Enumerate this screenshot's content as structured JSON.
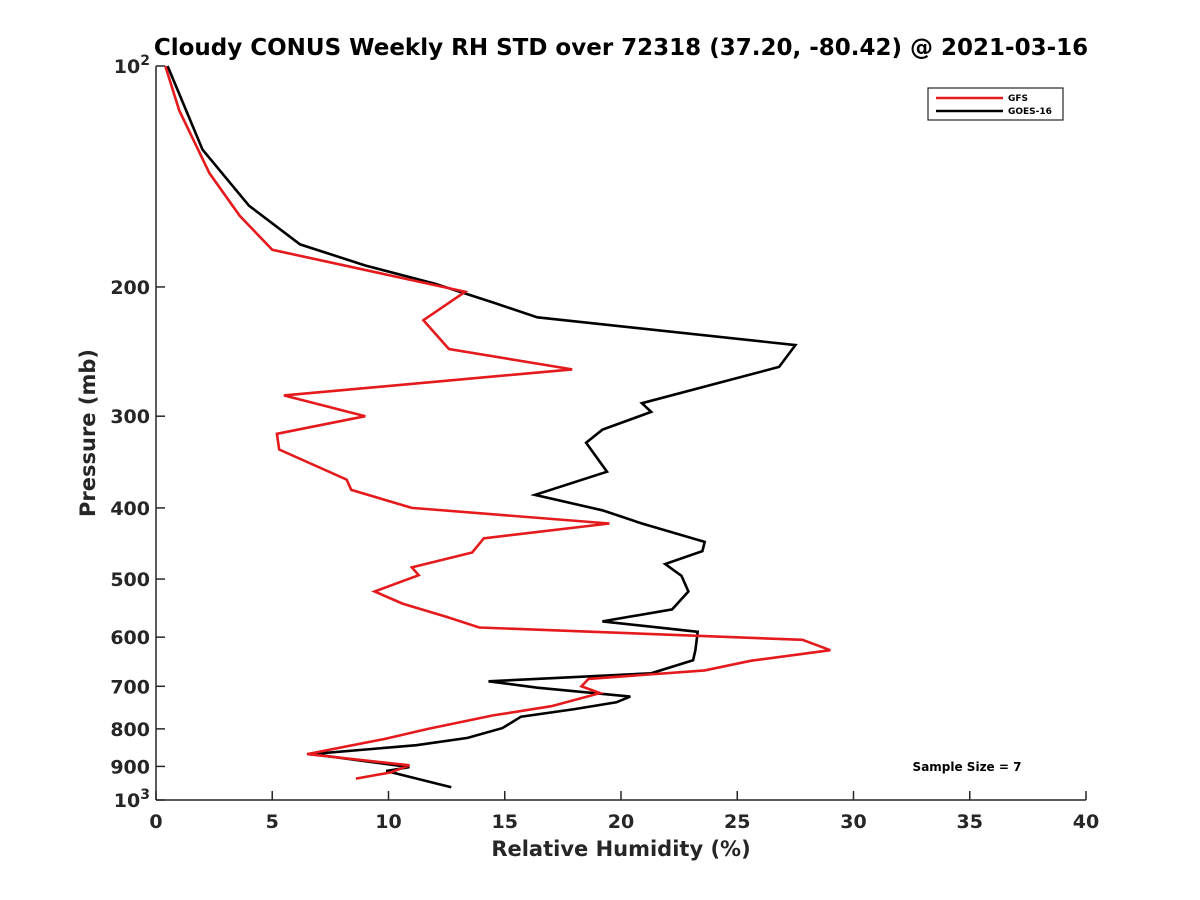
{
  "chart_data": {
    "type": "line",
    "title": "Cloudy CONUS Weekly RH STD over 72318 (37.20, -80.42) @ 2021-03-16",
    "xlabel": "Relative Humidity (%)",
    "ylabel": "Pressure (mb)",
    "xlim": [
      0,
      40
    ],
    "ylim": [
      100,
      1000
    ],
    "yscale": "log",
    "yreverse": true,
    "grid": false,
    "x_ticks": [
      0,
      5,
      10,
      15,
      20,
      25,
      30,
      35,
      40
    ],
    "x_tick_labels": [
      "0",
      "5",
      "10",
      "15",
      "20",
      "25",
      "30",
      "35",
      "40"
    ],
    "y_ticks": [
      100,
      200,
      300,
      400,
      500,
      600,
      700,
      800,
      900,
      1000
    ],
    "y_tick_labels": [
      {
        "base": "10",
        "exp": "2"
      },
      {
        "base": "200",
        "exp": ""
      },
      {
        "base": "300",
        "exp": ""
      },
      {
        "base": "400",
        "exp": ""
      },
      {
        "base": "500",
        "exp": ""
      },
      {
        "base": "600",
        "exp": ""
      },
      {
        "base": "700",
        "exp": ""
      },
      {
        "base": "800",
        "exp": ""
      },
      {
        "base": "900",
        "exp": ""
      },
      {
        "base": "10",
        "exp": "3"
      }
    ],
    "legend_position": "top-right",
    "annotation": "Sample Size = 7",
    "series": [
      {
        "name": "GFS",
        "color": "#e41a1c",
        "x": [
          0.4,
          1.0,
          2.3,
          3.6,
          5.0,
          13.3,
          11.5,
          12.6,
          17.9,
          5.5,
          9.0,
          5.2,
          5.3,
          8.2,
          8.4,
          11.0,
          19.5,
          14.1,
          13.6,
          11.0,
          11.3,
          9.4,
          10.6,
          12.5,
          13.9,
          27.8,
          29.0,
          25.6,
          23.6,
          18.6,
          18.3,
          19.1,
          17.0,
          14.5,
          11.7,
          9.8,
          6.5,
          10.9,
          10.1,
          8.6
        ],
        "y": [
          100,
          115,
          140,
          160,
          178,
          203,
          222,
          243,
          259,
          281,
          300,
          317,
          333,
          366,
          378,
          400,
          420,
          440,
          460,
          482,
          494,
          520,
          540,
          563,
          582,
          605,
          625,
          646,
          666,
          684,
          700,
          715,
          745,
          767,
          800,
          826,
          866,
          897,
          917,
          935
        ]
      },
      {
        "name": "GOES-16",
        "color": "#000000",
        "x": [
          0.5,
          2.0,
          4.0,
          6.2,
          9.0,
          12.0,
          14.5,
          16.4,
          27.5,
          26.8,
          20.9,
          21.3,
          19.2,
          18.5,
          19.4,
          16.3,
          19.2,
          20.9,
          23.6,
          23.5,
          21.9,
          22.6,
          22.9,
          22.2,
          19.2,
          23.3,
          23.2,
          23.1,
          21.3,
          14.3,
          16.4,
          20.4,
          19.8,
          18.0,
          15.7,
          14.9,
          13.4,
          11.2,
          6.7,
          10.9,
          9.9,
          12.7
        ],
        "y": [
          100,
          130,
          155,
          175,
          187,
          198,
          210,
          220,
          240,
          257,
          288,
          296,
          313,
          326,
          357,
          384,
          403,
          420,
          445,
          458,
          477,
          495,
          520,
          550,
          571,
          590,
          625,
          645,
          672,
          689,
          703,
          723,
          736,
          752,
          770,
          798,
          823,
          842,
          866,
          902,
          913,
          961
        ]
      }
    ]
  }
}
